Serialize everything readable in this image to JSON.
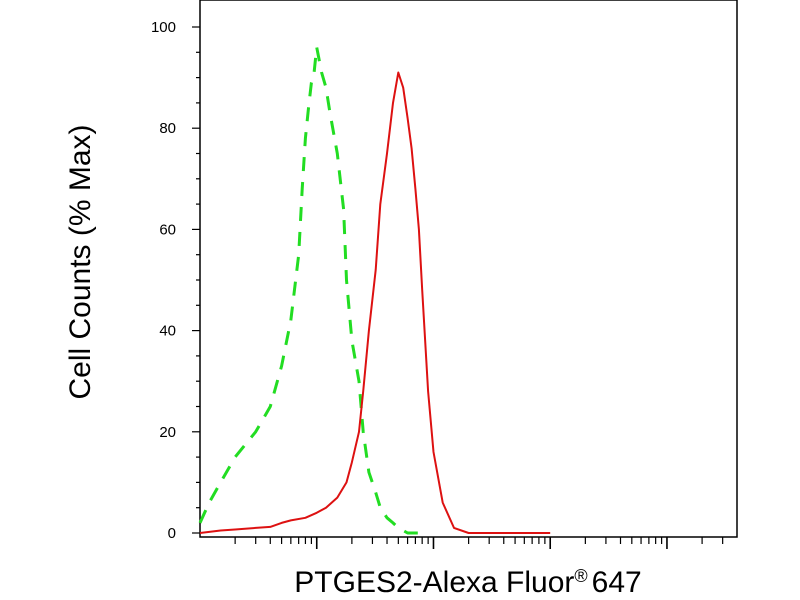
{
  "chart_data": {
    "type": "line",
    "title": "",
    "xlabel": "PTGES2-Alexa Fluor",
    "xlabel_superscript": "®",
    "xlabel_suffix": "647",
    "ylabel": "Cell Counts (% Max)",
    "x_scale": "log",
    "x_decades": [
      "10^0",
      "10^1",
      "10^2",
      "10^3",
      "10^4",
      "10^5"
    ],
    "ylim": [
      0,
      100
    ],
    "yticks": [
      "0",
      "20",
      "40",
      "60",
      "80",
      "100"
    ],
    "grid": false,
    "legend": "none",
    "series": [
      {
        "color": "#22dd22",
        "style": "dashed",
        "x": [
          1.0,
          1.2,
          1.5,
          2.0,
          3.0,
          4.0,
          5.0,
          6.0,
          7.0,
          7.5,
          8.0,
          8.5,
          9.0,
          9.5,
          10,
          11,
          12,
          13,
          15,
          17,
          18,
          20,
          23,
          25,
          28,
          32,
          35,
          40,
          45,
          50,
          55,
          60,
          70,
          80
        ],
        "y": [
          2,
          6,
          10,
          15,
          20,
          25,
          33,
          42,
          55,
          68,
          78,
          84,
          89,
          91,
          96,
          91,
          88,
          83,
          75,
          64,
          50,
          38,
          30,
          20,
          12,
          8,
          5,
          3,
          2,
          1,
          0.5,
          0,
          0,
          0
        ]
      },
      {
        "color": "#dd1111",
        "style": "solid",
        "x": [
          1.0,
          1.5,
          2.0,
          3.0,
          4.0,
          5.0,
          6.0,
          8.0,
          10,
          12,
          15,
          18,
          20,
          23,
          25,
          28,
          32,
          35,
          40,
          45,
          50,
          55,
          60,
          65,
          70,
          75,
          80,
          90,
          100,
          120,
          150,
          200,
          300,
          400,
          500,
          600,
          800,
          1000
        ],
        "y": [
          0,
          0.5,
          0.7,
          1,
          1.2,
          2,
          2.5,
          3,
          4,
          5,
          7,
          10,
          14,
          20,
          28,
          40,
          52,
          65,
          75,
          85,
          91,
          88,
          82,
          76,
          68,
          60,
          48,
          28,
          16,
          6,
          1,
          0,
          0,
          0,
          0,
          0,
          0,
          0
        ]
      }
    ]
  }
}
